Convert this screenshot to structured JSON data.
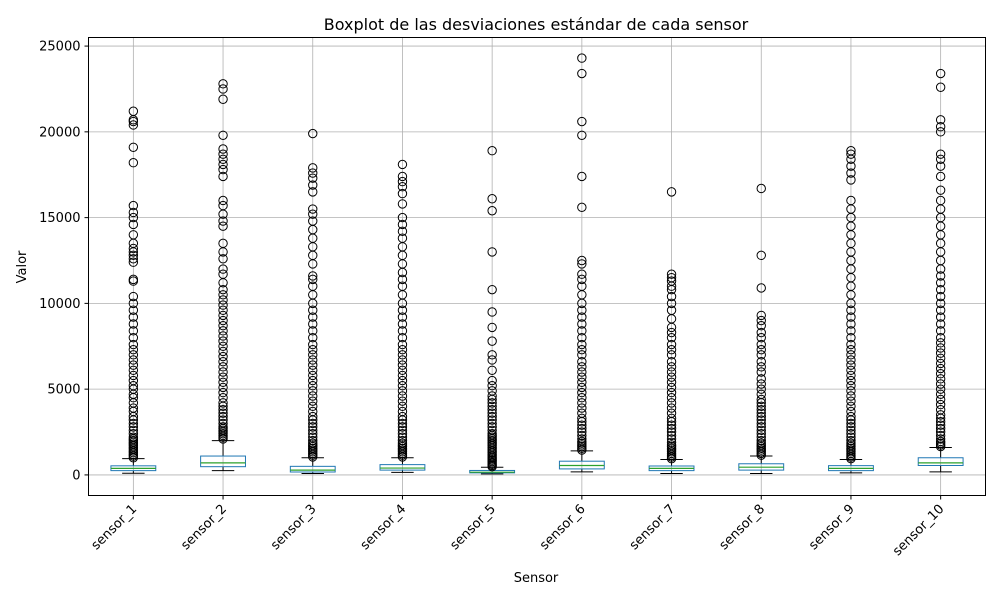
{
  "chart_data": {
    "type": "boxplot",
    "title": "Boxplot de las desviaciones estándar de cada sensor",
    "xlabel": "Sensor",
    "ylabel": "Valor",
    "categories": [
      "sensor_1",
      "sensor_2",
      "sensor_3",
      "sensor_4",
      "sensor_5",
      "sensor_6",
      "sensor_7",
      "sensor_8",
      "sensor_9",
      "sensor_10"
    ],
    "ylim": [
      -1200,
      25500
    ],
    "yticks": [
      0,
      5000,
      10000,
      15000,
      20000,
      25000
    ],
    "grid": true,
    "colors": {
      "box": "#1f77b4",
      "median": "#2ca02c",
      "whisker": "#000000",
      "flier": "#000000",
      "grid": "#b0b0b0"
    },
    "series": [
      {
        "category": "sensor_1",
        "whisker_low": 100,
        "q1": 250,
        "median": 380,
        "q3": 530,
        "whisker_high": 950,
        "fliers": [
          1000,
          1100,
          1200,
          1300,
          1400,
          1500,
          1600,
          1700,
          1800,
          1900,
          2000,
          2100,
          2200,
          2400,
          2600,
          2800,
          3000,
          3200,
          3400,
          3700,
          3900,
          4200,
          4500,
          4700,
          5000,
          5200,
          5500,
          5800,
          6100,
          6400,
          6700,
          7000,
          7300,
          7600,
          8000,
          8400,
          8800,
          9200,
          9600,
          10000,
          10400,
          11300,
          11400,
          12400,
          12600,
          12800,
          13000,
          13200,
          13500,
          14000,
          14600,
          15000,
          15300,
          15700,
          18200,
          19100,
          20400,
          20600,
          20700,
          21200
        ]
      },
      {
        "category": "sensor_2",
        "whisker_low": 250,
        "q1": 480,
        "median": 700,
        "q3": 1100,
        "whisker_high": 2000,
        "fliers": [
          2100,
          2200,
          2300,
          2400,
          2500,
          2600,
          2700,
          2800,
          3000,
          3200,
          3400,
          3600,
          3800,
          4000,
          4200,
          4500,
          4800,
          5100,
          5400,
          5700,
          6000,
          6300,
          6600,
          6900,
          7200,
          7500,
          7800,
          8100,
          8400,
          8700,
          9000,
          9300,
          9600,
          9900,
          10200,
          10500,
          10800,
          11200,
          11700,
          12000,
          12600,
          13000,
          13500,
          14500,
          14800,
          15200,
          15700,
          16000,
          17400,
          17800,
          18100,
          18400,
          18700,
          19000,
          19800,
          21900,
          22500,
          22800
        ]
      },
      {
        "category": "sensor_3",
        "whisker_low": 80,
        "q1": 170,
        "median": 280,
        "q3": 500,
        "whisker_high": 1000,
        "fliers": [
          1050,
          1150,
          1250,
          1350,
          1450,
          1550,
          1650,
          1750,
          1850,
          2000,
          2200,
          2400,
          2600,
          2800,
          3000,
          3200,
          3400,
          3700,
          4000,
          4300,
          4600,
          4900,
          5200,
          5500,
          5800,
          6100,
          6400,
          6700,
          7000,
          7300,
          7600,
          8000,
          8400,
          8800,
          9200,
          9600,
          10000,
          10500,
          11000,
          11400,
          11600,
          12300,
          12800,
          13300,
          13800,
          14300,
          14800,
          15200,
          15500,
          16500,
          16900,
          17300,
          17600,
          17900,
          19900
        ]
      },
      {
        "category": "sensor_4",
        "whisker_low": 150,
        "q1": 280,
        "median": 400,
        "q3": 600,
        "whisker_high": 1000,
        "fliers": [
          1050,
          1150,
          1250,
          1350,
          1450,
          1550,
          1650,
          1750,
          1850,
          2000,
          2200,
          2400,
          2600,
          2800,
          3000,
          3200,
          3400,
          3700,
          4000,
          4300,
          4600,
          4900,
          5200,
          5500,
          5800,
          6100,
          6400,
          6700,
          7000,
          7300,
          7600,
          8000,
          8400,
          8800,
          9200,
          9600,
          10000,
          10500,
          11000,
          11400,
          11800,
          12300,
          12800,
          13300,
          13800,
          14200,
          14600,
          15000,
          15800,
          16400,
          16800,
          17100,
          17400,
          18100
        ]
      },
      {
        "category": "sensor_5",
        "whisker_low": 60,
        "q1": 120,
        "median": 160,
        "q3": 260,
        "whisker_high": 450,
        "fliers": [
          480,
          550,
          620,
          700,
          780,
          860,
          940,
          1020,
          1100,
          1200,
          1300,
          1400,
          1500,
          1600,
          1700,
          1800,
          1900,
          2000,
          2100,
          2200,
          2300,
          2400,
          2600,
          2800,
          3000,
          3200,
          3400,
          3600,
          3800,
          4000,
          4200,
          4400,
          4600,
          4900,
          5200,
          5500,
          6100,
          6700,
          7000,
          7800,
          8600,
          9500,
          10800,
          13000,
          15400,
          16100,
          18900
        ]
      },
      {
        "category": "sensor_6",
        "whisker_low": 180,
        "q1": 350,
        "median": 550,
        "q3": 800,
        "whisker_high": 1400,
        "fliers": [
          1450,
          1550,
          1650,
          1750,
          1850,
          1950,
          2100,
          2300,
          2500,
          2700,
          2900,
          3100,
          3300,
          3600,
          3900,
          4200,
          4500,
          4800,
          5100,
          5400,
          5700,
          6000,
          6300,
          6600,
          7000,
          7300,
          7600,
          8000,
          8400,
          8800,
          9200,
          9600,
          10000,
          10500,
          11000,
          11400,
          11700,
          12300,
          12500,
          15600,
          17400,
          19800,
          20600,
          23400,
          24300
        ]
      },
      {
        "category": "sensor_7",
        "whisker_low": 80,
        "q1": 250,
        "median": 380,
        "q3": 520,
        "whisker_high": 900,
        "fliers": [
          950,
          1050,
          1150,
          1250,
          1350,
          1450,
          1550,
          1650,
          1750,
          1900,
          2100,
          2300,
          2500,
          2700,
          2900,
          3100,
          3300,
          3600,
          3900,
          4200,
          4500,
          4800,
          5100,
          5400,
          5700,
          6000,
          6300,
          6600,
          7000,
          7300,
          7600,
          8000,
          8300,
          8600,
          9100,
          9600,
          10000,
          10400,
          10800,
          11000,
          11300,
          11500,
          11700,
          16500
        ]
      },
      {
        "category": "sensor_8",
        "whisker_low": 80,
        "q1": 280,
        "median": 450,
        "q3": 650,
        "whisker_high": 1100,
        "fliers": [
          1150,
          1250,
          1350,
          1450,
          1550,
          1650,
          1750,
          1850,
          2000,
          2200,
          2400,
          2600,
          2800,
          3000,
          3200,
          3400,
          3600,
          3800,
          4000,
          4200,
          4400,
          4700,
          5000,
          5300,
          5600,
          6000,
          6300,
          6600,
          7000,
          7300,
          7600,
          8000,
          8300,
          8700,
          9000,
          9300,
          10900,
          12800,
          16700
        ]
      },
      {
        "category": "sensor_9",
        "whisker_low": 120,
        "q1": 250,
        "median": 380,
        "q3": 540,
        "whisker_high": 900,
        "fliers": [
          950,
          1050,
          1150,
          1250,
          1350,
          1450,
          1550,
          1650,
          1750,
          1850,
          2000,
          2200,
          2400,
          2600,
          2800,
          3000,
          3200,
          3400,
          3700,
          4000,
          4300,
          4600,
          4900,
          5200,
          5500,
          5800,
          6100,
          6400,
          6700,
          7000,
          7300,
          7600,
          8000,
          8400,
          8800,
          9200,
          9600,
          10000,
          10500,
          11000,
          11500,
          12000,
          12500,
          13000,
          13500,
          14000,
          14500,
          15000,
          15500,
          16000,
          17200,
          17600,
          18000,
          18400,
          18700,
          18900
        ]
      },
      {
        "category": "sensor_10",
        "whisker_low": 180,
        "q1": 550,
        "median": 700,
        "q3": 1000,
        "whisker_high": 1600,
        "fliers": [
          1650,
          1750,
          1850,
          1950,
          2100,
          2300,
          2500,
          2700,
          2900,
          3100,
          3300,
          3500,
          3800,
          4100,
          4400,
          4700,
          5000,
          5300,
          5600,
          5900,
          6200,
          6500,
          6800,
          7100,
          7400,
          7700,
          8000,
          8400,
          8800,
          9200,
          9600,
          10000,
          10400,
          10800,
          11200,
          11600,
          12000,
          12500,
          13000,
          13500,
          14000,
          14500,
          15000,
          15500,
          16000,
          16600,
          17400,
          18000,
          18400,
          18700,
          20000,
          20300,
          20700,
          22600,
          23400
        ]
      }
    ]
  }
}
